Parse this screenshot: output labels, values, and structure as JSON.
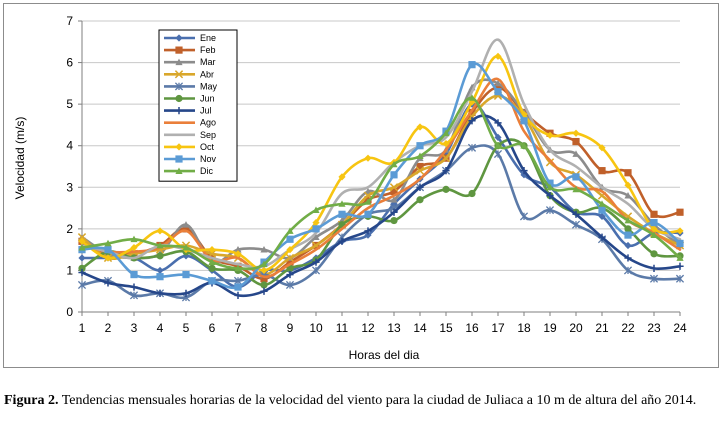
{
  "chart_data": {
    "type": "line",
    "title": "",
    "xlabel": "Horas del dia",
    "ylabel": "Velocidad (m/s)",
    "ylim": [
      0,
      7
    ],
    "xlim": [
      1,
      24
    ],
    "x": [
      1,
      2,
      3,
      4,
      5,
      6,
      7,
      8,
      9,
      10,
      11,
      12,
      13,
      14,
      15,
      16,
      17,
      18,
      19,
      20,
      21,
      22,
      23,
      24
    ],
    "y_ticks": [
      "0",
      "1",
      "2",
      "3",
      "4",
      "5",
      "6",
      "7"
    ],
    "x_ticks": [
      "1",
      "2",
      "3",
      "4",
      "5",
      "6",
      "7",
      "8",
      "9",
      "10",
      "11",
      "12",
      "13",
      "14",
      "15",
      "16",
      "17",
      "18",
      "19",
      "20",
      "21",
      "22",
      "23",
      "24"
    ],
    "grid": "horizontal",
    "legend_position": "top-left-inside",
    "series": [
      {
        "name": "Ene",
        "color": "#4a6fae",
        "marker": "diamond",
        "values": [
          1.3,
          1.3,
          1.3,
          1.0,
          1.35,
          1.0,
          0.6,
          1.0,
          1.0,
          1.3,
          1.7,
          1.85,
          2.6,
          3.2,
          3.8,
          5.0,
          4.2,
          3.3,
          3.0,
          2.4,
          2.3,
          1.6,
          1.9,
          1.9
        ]
      },
      {
        "name": "Feb",
        "color": "#c0602a",
        "marker": "square",
        "values": [
          1.7,
          1.4,
          1.4,
          1.6,
          2.0,
          1.3,
          1.1,
          0.8,
          1.2,
          1.6,
          2.1,
          2.7,
          2.9,
          3.5,
          3.7,
          4.8,
          5.4,
          4.8,
          4.3,
          4.1,
          3.4,
          3.35,
          2.35,
          2.4
        ]
      },
      {
        "name": "Mar",
        "color": "#8c8c8c",
        "marker": "triangle",
        "values": [
          1.8,
          1.4,
          1.3,
          1.4,
          2.1,
          1.2,
          1.5,
          1.5,
          1.3,
          1.8,
          2.2,
          2.9,
          2.7,
          3.7,
          3.9,
          5.4,
          5.5,
          4.8,
          3.9,
          3.8,
          3.0,
          2.8,
          2.1,
          1.6
        ]
      },
      {
        "name": "Abr",
        "color": "#d9a72b",
        "marker": "x",
        "values": [
          1.8,
          1.3,
          1.4,
          1.5,
          1.6,
          1.4,
          1.3,
          0.9,
          1.3,
          1.6,
          2.1,
          2.8,
          3.0,
          3.4,
          3.7,
          4.7,
          5.2,
          4.7,
          3.6,
          3.3,
          2.8,
          2.3,
          1.9,
          1.6
        ]
      },
      {
        "name": "May",
        "color": "#5b7aa8",
        "marker": "star",
        "values": [
          0.65,
          0.75,
          0.4,
          0.45,
          0.35,
          0.75,
          0.75,
          0.9,
          0.65,
          1.0,
          1.8,
          2.35,
          2.5,
          3.0,
          3.4,
          3.95,
          3.8,
          2.3,
          2.45,
          2.1,
          1.75,
          1.0,
          0.8,
          0.8
        ]
      },
      {
        "name": "Jun",
        "color": "#5f9640",
        "marker": "circle",
        "values": [
          1.05,
          1.45,
          1.3,
          1.35,
          1.45,
          1.05,
          1.0,
          0.65,
          1.05,
          1.25,
          2.1,
          2.3,
          2.2,
          2.7,
          2.95,
          2.85,
          4.0,
          4.0,
          2.8,
          2.4,
          2.5,
          2.0,
          1.4,
          1.35
        ]
      },
      {
        "name": "Jul",
        "color": "#26478a",
        "marker": "plus",
        "values": [
          0.95,
          0.7,
          0.6,
          0.45,
          0.45,
          0.7,
          0.4,
          0.5,
          0.9,
          1.2,
          1.7,
          1.95,
          2.4,
          3.0,
          3.4,
          4.6,
          4.55,
          3.4,
          2.8,
          2.35,
          1.8,
          1.3,
          1.05,
          1.1
        ]
      },
      {
        "name": "Ago",
        "color": "#ea7f3a",
        "marker": "none",
        "values": [
          1.6,
          1.45,
          1.45,
          1.55,
          1.95,
          1.25,
          1.3,
          0.85,
          1.15,
          1.5,
          2.0,
          2.5,
          2.8,
          3.2,
          3.9,
          4.85,
          5.6,
          4.35,
          3.65,
          3.0,
          2.9,
          2.2,
          1.9,
          1.5
        ]
      },
      {
        "name": "Sep",
        "color": "#b0b0b0",
        "marker": "none",
        "values": [
          1.6,
          1.45,
          1.3,
          1.6,
          1.5,
          1.3,
          1.15,
          1.1,
          1.5,
          1.9,
          2.85,
          3.0,
          3.6,
          4.0,
          4.2,
          5.3,
          6.55,
          5.0,
          3.9,
          3.5,
          3.0,
          2.6,
          2.0,
          1.75
        ]
      },
      {
        "name": "Oct",
        "color": "#f7c511",
        "marker": "diamond",
        "values": [
          1.7,
          1.3,
          1.55,
          1.95,
          1.5,
          1.5,
          1.4,
          1.0,
          1.5,
          2.15,
          3.25,
          3.7,
          3.6,
          4.45,
          4.05,
          5.05,
          6.15,
          4.75,
          4.25,
          4.3,
          3.95,
          3.05,
          2.0,
          1.95
        ]
      },
      {
        "name": "Nov",
        "color": "#5b9bd5",
        "marker": "square",
        "values": [
          1.5,
          1.5,
          0.9,
          0.85,
          0.9,
          0.75,
          0.6,
          1.2,
          1.75,
          2.0,
          2.35,
          2.35,
          3.3,
          4.0,
          4.35,
          5.95,
          5.3,
          4.6,
          3.1,
          3.25,
          2.45,
          1.85,
          2.15,
          1.65
        ]
      },
      {
        "name": "Dic",
        "color": "#71ad47",
        "marker": "triangle",
        "values": [
          1.55,
          1.65,
          1.75,
          1.6,
          1.55,
          1.2,
          1.05,
          1.15,
          1.95,
          2.45,
          2.6,
          2.65,
          3.55,
          3.75,
          4.3,
          5.15,
          4.0,
          4.0,
          3.0,
          2.95,
          2.6,
          2.2,
          1.85,
          1.3
        ]
      }
    ]
  },
  "caption": {
    "label": "Figura 2.",
    "text": " Tendencias mensuales horarias de la velocidad del viento para la ciudad de Juliaca a 10 m de altura del año 2014."
  }
}
